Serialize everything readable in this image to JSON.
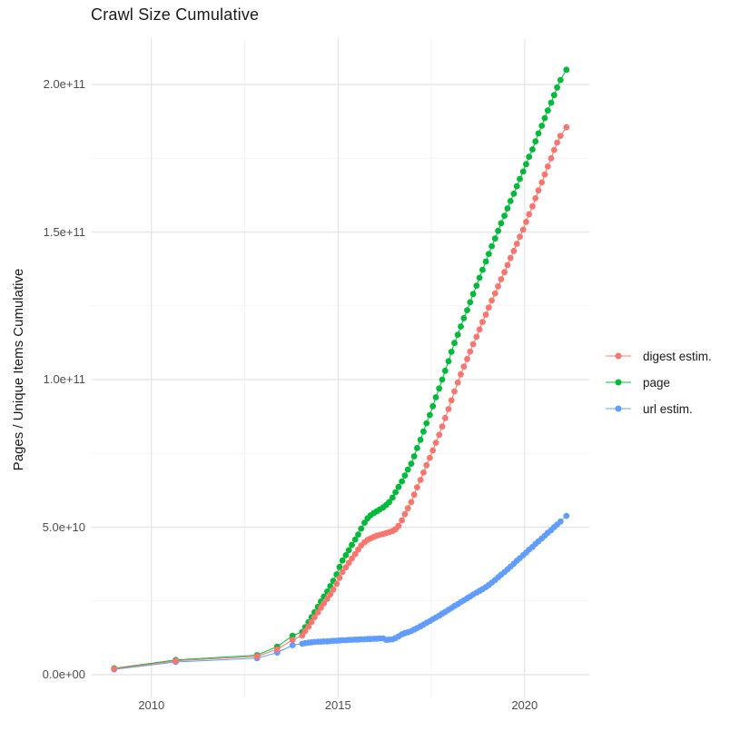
{
  "chart": {
    "title": "Crawl Size Cumulative",
    "y_axis_title": "Pages / Unique Items Cumulative"
  },
  "legend": {
    "items": [
      {
        "label": "digest estim.",
        "color": "#F8766D"
      },
      {
        "label": "page",
        "color": "#00BA38"
      },
      {
        "label": "url estim.",
        "color": "#619CFF"
      }
    ]
  },
  "chart_data": {
    "type": "line",
    "title": "Crawl Size Cumulative",
    "xlabel": "",
    "ylabel": "Pages / Unique Items Cumulative",
    "grid": true,
    "legend_position": "right",
    "units": "cumulative count of pages / unique items; point values below are in billions (1e9)",
    "x_axis": {
      "ticks": [
        2010,
        2015,
        2020
      ],
      "tick_labels": [
        "2010",
        "2015",
        "2020"
      ],
      "minor_ticks": [
        2012.5,
        2017.5
      ],
      "range": [
        2008.4,
        2021.7
      ]
    },
    "y_axis": {
      "ticks_billions": [
        0,
        50,
        100,
        150,
        200
      ],
      "tick_labels": [
        "0.0e+00",
        "5.0e+10",
        "1.0e+11",
        "1.5e+11",
        "2.0e+11"
      ],
      "minor_ticks_billions": [
        25,
        75,
        125,
        175
      ],
      "range_billions": [
        -8,
        215
      ]
    },
    "series": [
      {
        "name": "digest estim.",
        "color": "#F8766D",
        "points": [
          [
            2009.0,
            2.0
          ],
          [
            2010.65,
            4.7
          ],
          [
            2012.83,
            6.2
          ],
          [
            2013.37,
            8.6
          ],
          [
            2013.78,
            11.8
          ],
          [
            2014.04,
            13.3
          ],
          [
            2014.12,
            14.8
          ],
          [
            2014.21,
            16.3
          ],
          [
            2014.29,
            17.9
          ],
          [
            2014.37,
            19.5
          ],
          [
            2014.46,
            21.1
          ],
          [
            2014.54,
            22.7
          ],
          [
            2014.62,
            24.2
          ],
          [
            2014.71,
            25.7
          ],
          [
            2014.79,
            27.2
          ],
          [
            2014.87,
            28.8
          ],
          [
            2014.96,
            30.8
          ],
          [
            2015.04,
            32.8
          ],
          [
            2015.12,
            34.8
          ],
          [
            2015.21,
            36.4
          ],
          [
            2015.29,
            37.9
          ],
          [
            2015.37,
            39.4
          ],
          [
            2015.46,
            40.9
          ],
          [
            2015.54,
            42.4
          ],
          [
            2015.62,
            43.8
          ],
          [
            2015.71,
            44.9
          ],
          [
            2015.79,
            45.7
          ],
          [
            2015.87,
            46.2
          ],
          [
            2015.96,
            46.7
          ],
          [
            2016.04,
            47.1
          ],
          [
            2016.12,
            47.4
          ],
          [
            2016.21,
            47.7
          ],
          [
            2016.29,
            48.0
          ],
          [
            2016.37,
            48.3
          ],
          [
            2016.46,
            48.7
          ],
          [
            2016.54,
            49.3
          ],
          [
            2016.62,
            50.4
          ],
          [
            2016.71,
            52.3
          ],
          [
            2016.79,
            54.4
          ],
          [
            2016.87,
            56.4
          ],
          [
            2016.96,
            58.5
          ],
          [
            2017.04,
            61.0
          ],
          [
            2017.12,
            63.5
          ],
          [
            2017.21,
            66.0
          ],
          [
            2017.29,
            68.5
          ],
          [
            2017.37,
            71.0
          ],
          [
            2017.46,
            73.5
          ],
          [
            2017.54,
            76.0
          ],
          [
            2017.62,
            78.6
          ],
          [
            2017.71,
            81.3
          ],
          [
            2017.79,
            84.1
          ],
          [
            2017.87,
            87.0
          ],
          [
            2017.96,
            90.0
          ],
          [
            2018.04,
            93.0
          ],
          [
            2018.12,
            96.0
          ],
          [
            2018.21,
            99.0
          ],
          [
            2018.29,
            101.8
          ],
          [
            2018.37,
            104.4
          ],
          [
            2018.46,
            107.0
          ],
          [
            2018.54,
            109.5
          ],
          [
            2018.62,
            112.0
          ],
          [
            2018.71,
            114.5
          ],
          [
            2018.79,
            117.0
          ],
          [
            2018.87,
            119.5
          ],
          [
            2018.96,
            122.0
          ],
          [
            2019.04,
            124.4
          ],
          [
            2019.12,
            126.8
          ],
          [
            2019.21,
            129.2
          ],
          [
            2019.29,
            131.6
          ],
          [
            2019.37,
            134.0
          ],
          [
            2019.46,
            136.4
          ],
          [
            2019.54,
            138.8
          ],
          [
            2019.62,
            141.2
          ],
          [
            2019.71,
            143.6
          ],
          [
            2019.79,
            146.0
          ],
          [
            2019.87,
            148.4
          ],
          [
            2019.96,
            150.8
          ],
          [
            2020.04,
            153.4
          ],
          [
            2020.12,
            156.0
          ],
          [
            2020.21,
            158.7
          ],
          [
            2020.29,
            161.4
          ],
          [
            2020.37,
            164.1
          ],
          [
            2020.46,
            166.8
          ],
          [
            2020.54,
            169.5
          ],
          [
            2020.62,
            172.2
          ],
          [
            2020.71,
            175.0
          ],
          [
            2020.79,
            177.8
          ],
          [
            2020.87,
            180.3
          ],
          [
            2020.96,
            182.6
          ],
          [
            2021.12,
            185.5
          ]
        ]
      },
      {
        "name": "page",
        "color": "#00BA38",
        "points": [
          [
            2009.0,
            2.2
          ],
          [
            2010.65,
            5.0
          ],
          [
            2012.83,
            6.6
          ],
          [
            2013.37,
            9.5
          ],
          [
            2013.78,
            13.2
          ],
          [
            2014.04,
            14.5
          ],
          [
            2014.12,
            16.1
          ],
          [
            2014.21,
            17.8
          ],
          [
            2014.29,
            19.5
          ],
          [
            2014.37,
            21.2
          ],
          [
            2014.46,
            23.0
          ],
          [
            2014.54,
            24.8
          ],
          [
            2014.62,
            26.5
          ],
          [
            2014.71,
            28.2
          ],
          [
            2014.79,
            30.0
          ],
          [
            2014.87,
            31.8
          ],
          [
            2014.96,
            34.0
          ],
          [
            2015.04,
            36.5
          ],
          [
            2015.12,
            38.7
          ],
          [
            2015.21,
            40.5
          ],
          [
            2015.29,
            42.2
          ],
          [
            2015.37,
            44.0
          ],
          [
            2015.46,
            45.8
          ],
          [
            2015.54,
            47.5
          ],
          [
            2015.62,
            49.5
          ],
          [
            2015.71,
            51.5
          ],
          [
            2015.79,
            53.0
          ],
          [
            2015.87,
            54.0
          ],
          [
            2015.96,
            54.8
          ],
          [
            2016.04,
            55.4
          ],
          [
            2016.12,
            56.0
          ],
          [
            2016.21,
            56.7
          ],
          [
            2016.29,
            57.5
          ],
          [
            2016.37,
            58.5
          ],
          [
            2016.46,
            60.0
          ],
          [
            2016.54,
            61.8
          ],
          [
            2016.62,
            63.6
          ],
          [
            2016.71,
            65.5
          ],
          [
            2016.79,
            67.5
          ],
          [
            2016.87,
            69.5
          ],
          [
            2016.96,
            71.5
          ],
          [
            2017.04,
            74.0
          ],
          [
            2017.12,
            76.8
          ],
          [
            2017.21,
            79.6
          ],
          [
            2017.29,
            82.4
          ],
          [
            2017.37,
            85.2
          ],
          [
            2017.46,
            88.0
          ],
          [
            2017.54,
            91.0
          ],
          [
            2017.62,
            94.0
          ],
          [
            2017.71,
            97.0
          ],
          [
            2017.79,
            100.0
          ],
          [
            2017.87,
            103.0
          ],
          [
            2017.96,
            106.2
          ],
          [
            2018.04,
            109.4
          ],
          [
            2018.12,
            112.4
          ],
          [
            2018.21,
            115.2
          ],
          [
            2018.29,
            118.0
          ],
          [
            2018.37,
            120.8
          ],
          [
            2018.46,
            123.5
          ],
          [
            2018.54,
            126.2
          ],
          [
            2018.62,
            129.0
          ],
          [
            2018.71,
            131.8
          ],
          [
            2018.79,
            134.5
          ],
          [
            2018.87,
            137.2
          ],
          [
            2018.96,
            140.0
          ],
          [
            2019.04,
            142.6
          ],
          [
            2019.12,
            145.2
          ],
          [
            2019.21,
            147.8
          ],
          [
            2019.29,
            150.4
          ],
          [
            2019.37,
            153.0
          ],
          [
            2019.46,
            155.5
          ],
          [
            2019.54,
            158.0
          ],
          [
            2019.62,
            160.5
          ],
          [
            2019.71,
            163.0
          ],
          [
            2019.79,
            165.5
          ],
          [
            2019.87,
            168.0
          ],
          [
            2019.96,
            170.5
          ],
          [
            2020.04,
            173.0
          ],
          [
            2020.12,
            175.5
          ],
          [
            2020.21,
            178.0
          ],
          [
            2020.29,
            180.7
          ],
          [
            2020.37,
            183.4
          ],
          [
            2020.46,
            186.0
          ],
          [
            2020.54,
            188.6
          ],
          [
            2020.62,
            191.2
          ],
          [
            2020.71,
            193.8
          ],
          [
            2020.79,
            196.4
          ],
          [
            2020.87,
            199.0
          ],
          [
            2020.96,
            201.5
          ],
          [
            2021.12,
            205.0
          ]
        ]
      },
      {
        "name": "url estim.",
        "color": "#619CFF",
        "points": [
          [
            2009.0,
            1.8
          ],
          [
            2010.65,
            4.3
          ],
          [
            2012.83,
            5.6
          ],
          [
            2013.37,
            7.5
          ],
          [
            2013.78,
            10.0
          ],
          [
            2014.04,
            10.5
          ],
          [
            2014.12,
            10.7
          ],
          [
            2014.21,
            10.9
          ],
          [
            2014.29,
            11.0
          ],
          [
            2014.37,
            11.1
          ],
          [
            2014.46,
            11.2
          ],
          [
            2014.54,
            11.2
          ],
          [
            2014.62,
            11.3
          ],
          [
            2014.71,
            11.3
          ],
          [
            2014.79,
            11.4
          ],
          [
            2014.87,
            11.5
          ],
          [
            2014.96,
            11.5
          ],
          [
            2015.04,
            11.6
          ],
          [
            2015.12,
            11.7
          ],
          [
            2015.21,
            11.7
          ],
          [
            2015.29,
            11.8
          ],
          [
            2015.37,
            11.8
          ],
          [
            2015.46,
            11.9
          ],
          [
            2015.54,
            11.9
          ],
          [
            2015.62,
            12.0
          ],
          [
            2015.71,
            12.0
          ],
          [
            2015.79,
            12.1
          ],
          [
            2015.87,
            12.1
          ],
          [
            2015.96,
            12.2
          ],
          [
            2016.04,
            12.2
          ],
          [
            2016.12,
            12.3
          ],
          [
            2016.21,
            12.3
          ],
          [
            2016.29,
            11.8
          ],
          [
            2016.37,
            11.9
          ],
          [
            2016.46,
            12.0
          ],
          [
            2016.54,
            12.4
          ],
          [
            2016.62,
            13.0
          ],
          [
            2016.71,
            13.7
          ],
          [
            2016.79,
            14.1
          ],
          [
            2016.87,
            14.4
          ],
          [
            2016.96,
            14.8
          ],
          [
            2017.04,
            15.3
          ],
          [
            2017.12,
            15.8
          ],
          [
            2017.21,
            16.4
          ],
          [
            2017.29,
            17.0
          ],
          [
            2017.37,
            17.6
          ],
          [
            2017.46,
            18.2
          ],
          [
            2017.54,
            18.8
          ],
          [
            2017.62,
            19.4
          ],
          [
            2017.71,
            20.0
          ],
          [
            2017.79,
            20.7
          ],
          [
            2017.87,
            21.3
          ],
          [
            2017.96,
            22.0
          ],
          [
            2018.04,
            22.6
          ],
          [
            2018.12,
            23.3
          ],
          [
            2018.21,
            23.9
          ],
          [
            2018.29,
            24.6
          ],
          [
            2018.37,
            25.2
          ],
          [
            2018.46,
            25.9
          ],
          [
            2018.54,
            26.5
          ],
          [
            2018.62,
            27.2
          ],
          [
            2018.71,
            27.8
          ],
          [
            2018.79,
            28.4
          ],
          [
            2018.87,
            29.0
          ],
          [
            2018.96,
            29.7
          ],
          [
            2019.04,
            30.4
          ],
          [
            2019.12,
            31.2
          ],
          [
            2019.21,
            32.1
          ],
          [
            2019.29,
            33.0
          ],
          [
            2019.37,
            33.9
          ],
          [
            2019.46,
            34.8
          ],
          [
            2019.54,
            35.7
          ],
          [
            2019.62,
            36.6
          ],
          [
            2019.71,
            37.6
          ],
          [
            2019.79,
            38.6
          ],
          [
            2019.87,
            39.5
          ],
          [
            2019.96,
            40.5
          ],
          [
            2020.04,
            41.4
          ],
          [
            2020.12,
            42.4
          ],
          [
            2020.21,
            43.3
          ],
          [
            2020.29,
            44.3
          ],
          [
            2020.37,
            45.2
          ],
          [
            2020.46,
            46.2
          ],
          [
            2020.54,
            47.1
          ],
          [
            2020.62,
            48.1
          ],
          [
            2020.71,
            49.0
          ],
          [
            2020.79,
            50.0
          ],
          [
            2020.87,
            50.9
          ],
          [
            2020.96,
            51.9
          ],
          [
            2021.12,
            53.8
          ]
        ]
      }
    ]
  }
}
